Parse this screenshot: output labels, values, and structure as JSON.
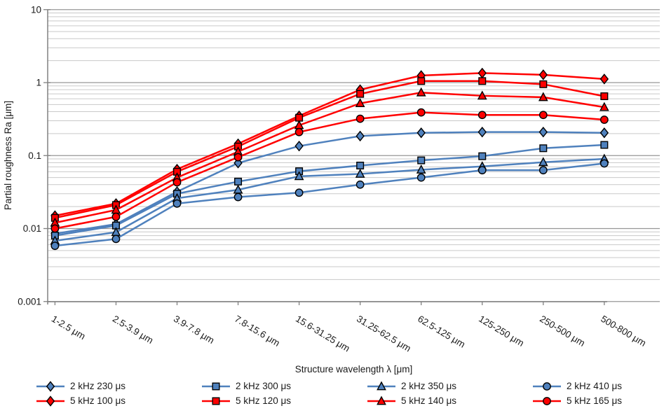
{
  "chart_data": {
    "type": "line",
    "title": "",
    "xlabel": "Structure wavelength λ [μm]",
    "ylabel": "Partial roughness Ra [μm]",
    "y_scale": "log",
    "ylim": [
      0.001,
      10
    ],
    "y_ticks": [
      10,
      1,
      0.1,
      0.01,
      0.001
    ],
    "y_tick_labels": [
      "10",
      "1",
      "0.1",
      "0.01",
      "0.001"
    ],
    "grid": "horizontal major and minor gridlines",
    "legend_position": "bottom",
    "categories": [
      "1-2.5 μm",
      "2.5-3.9 μm",
      "3.9-7.8 μm",
      "7.8-15.6 μm",
      "15.6-31.25 μm",
      "31.25-62.5 μm",
      "62.5-125 μm",
      "125-250 μm",
      "250-500 μm",
      "500-800 μm"
    ],
    "colors": {
      "blue_2kHz": "#4F81BD",
      "red_5kHz": "#FF0000",
      "marker_outline": "#000000",
      "gridline_minor": "#C9C9C9",
      "gridline_major": "#969696",
      "axis": "#808080"
    },
    "series": [
      {
        "name": "2 kHz 230 μs",
        "color": "#4F81BD",
        "marker": "diamond",
        "values": [
          0.0085,
          0.0115,
          0.032,
          0.079,
          0.135,
          0.185,
          0.205,
          0.21,
          0.21,
          0.205
        ]
      },
      {
        "name": "2 kHz 300 μs",
        "color": "#4F81BD",
        "marker": "square",
        "values": [
          0.008,
          0.011,
          0.03,
          0.044,
          0.061,
          0.073,
          0.086,
          0.098,
          0.126,
          0.14
        ]
      },
      {
        "name": "2 kHz 350 μs",
        "color": "#4F81BD",
        "marker": "triangle",
        "values": [
          0.0068,
          0.0089,
          0.026,
          0.034,
          0.052,
          0.056,
          0.064,
          0.071,
          0.081,
          0.09
        ]
      },
      {
        "name": "2 kHz 410 μs",
        "color": "#4F81BD",
        "marker": "circle",
        "values": [
          0.0058,
          0.0072,
          0.022,
          0.027,
          0.031,
          0.04,
          0.05,
          0.063,
          0.063,
          0.078
        ]
      },
      {
        "name": "5 kHz 100 μs",
        "color": "#FF0000",
        "marker": "diamond",
        "values": [
          0.015,
          0.022,
          0.065,
          0.145,
          0.35,
          0.8,
          1.25,
          1.35,
          1.28,
          1.12
        ]
      },
      {
        "name": "5 kHz 120 μs",
        "color": "#FF0000",
        "marker": "square",
        "values": [
          0.014,
          0.021,
          0.06,
          0.133,
          0.33,
          0.7,
          1.05,
          1.05,
          0.95,
          0.65
        ]
      },
      {
        "name": "5 kHz 140 μs",
        "color": "#FF0000",
        "marker": "triangle",
        "values": [
          0.012,
          0.018,
          0.05,
          0.113,
          0.26,
          0.52,
          0.73,
          0.66,
          0.63,
          0.46
        ]
      },
      {
        "name": "5 kHz 165 μs",
        "color": "#FF0000",
        "marker": "circle",
        "values": [
          0.01,
          0.0145,
          0.043,
          0.095,
          0.21,
          0.32,
          0.39,
          0.36,
          0.36,
          0.31
        ]
      }
    ]
  }
}
